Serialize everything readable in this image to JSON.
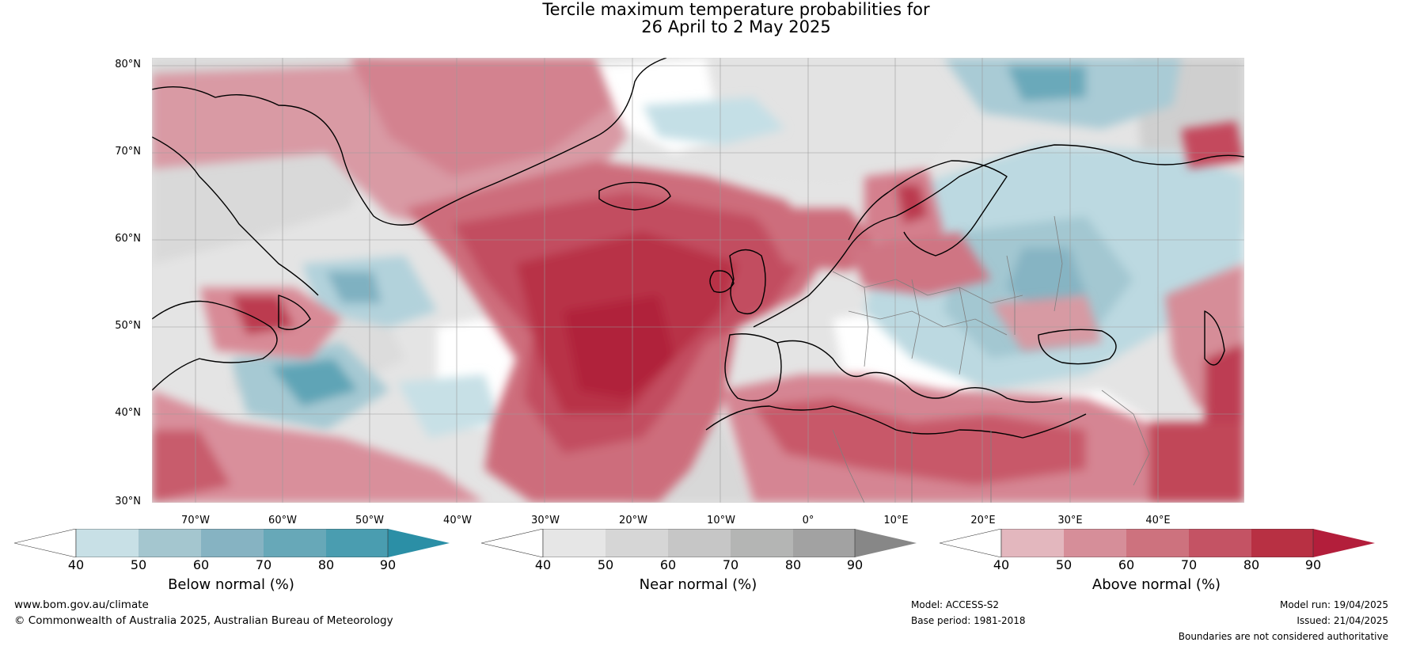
{
  "title": {
    "line1": "Tercile maximum temperature probabilities for",
    "line2": "26 April to 2 May 2025"
  },
  "map": {
    "latitude_labels": [
      "80°N",
      "70°N",
      "60°N",
      "50°N",
      "40°N",
      "30°N"
    ],
    "longitude_labels": [
      "70°W",
      "60°W",
      "50°W",
      "40°W",
      "30°W",
      "20°W",
      "10°W",
      "0°",
      "10°E",
      "20°E",
      "30°E",
      "40°E"
    ],
    "colors": {
      "land_outline": "#000000",
      "borders": "#888888",
      "gridlines": "#999999"
    }
  },
  "colorbars": [
    {
      "label": "Below normal (%)",
      "ticks": [
        "40",
        "50",
        "60",
        "70",
        "80",
        "90"
      ],
      "colors": [
        "#ffffff",
        "#c8e0e6",
        "#a4c6cf",
        "#86b3c2",
        "#67a8b8",
        "#4a9db0",
        "#2b8fa6"
      ]
    },
    {
      "label": "Near normal (%)",
      "ticks": [
        "40",
        "50",
        "60",
        "70",
        "80",
        "90"
      ],
      "colors": [
        "#ffffff",
        "#e6e6e6",
        "#d6d6d6",
        "#c6c6c6",
        "#b4b5b4",
        "#a2a2a2",
        "#878787"
      ]
    },
    {
      "label": "Above normal (%)",
      "ticks": [
        "40",
        "50",
        "60",
        "70",
        "80",
        "90"
      ],
      "colors": [
        "#ffffff",
        "#e3b7be",
        "#d68e99",
        "#cd727e",
        "#c45364",
        "#b83043",
        "#b31e3b"
      ]
    }
  ],
  "footer": {
    "website": "www.bom.gov.au/climate",
    "copyright": "© Commonwealth of Australia 2025, Australian Bureau of Meteorology",
    "model": "Model: ACCESS-S2",
    "base_period": "Base period: 1981-2018",
    "model_run": "Model run: 19/04/2025",
    "issued": "Issued: 21/04/2025",
    "disclaimer": "Boundaries are not considered authoritative"
  }
}
